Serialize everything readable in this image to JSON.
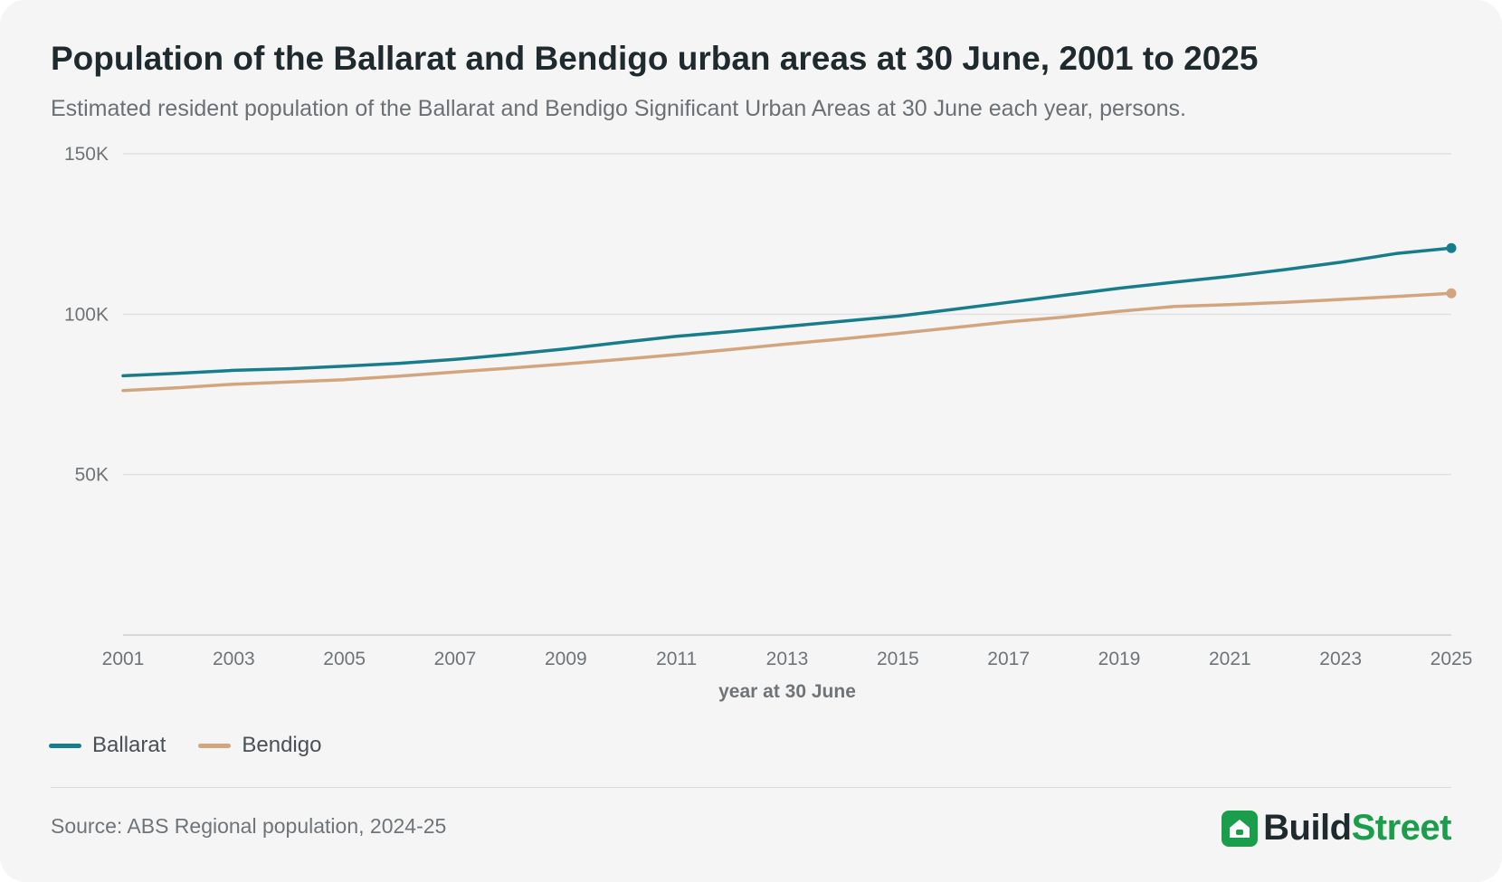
{
  "header": {
    "title": "Population of the Ballarat and Bendigo urban areas at 30 June, 2001 to 2025",
    "subtitle": "Estimated resident population of the Ballarat and Bendigo Significant Urban Areas at 30 June each year, persons."
  },
  "chart_data": {
    "type": "line",
    "title": "Population of the Ballarat and Bendigo urban areas at 30 June, 2001 to 2025",
    "subtitle": "Estimated resident population of the Ballarat and Bendigo Significant Urban Areas at 30 June each year, persons.",
    "xlabel": "year at 30 June",
    "ylabel": "",
    "x": [
      2001,
      2002,
      2003,
      2004,
      2005,
      2006,
      2007,
      2008,
      2009,
      2010,
      2011,
      2012,
      2013,
      2014,
      2015,
      2016,
      2017,
      2018,
      2019,
      2020,
      2021,
      2022,
      2023,
      2024,
      2025
    ],
    "xticks": [
      "2001",
      "2003",
      "2005",
      "2007",
      "2009",
      "2011",
      "2013",
      "2015",
      "2017",
      "2019",
      "2021",
      "2023",
      "2025"
    ],
    "ylim": [
      0,
      150000
    ],
    "yticks": [
      50000,
      100000,
      150000
    ],
    "ytick_labels": [
      "50K",
      "100K",
      "150K"
    ],
    "grid": true,
    "legend_position": "bottom-left",
    "series": [
      {
        "name": "Ballarat",
        "color": "#177d8c",
        "values": [
          80800,
          81600,
          82500,
          83000,
          83800,
          84700,
          85900,
          87500,
          89200,
          91200,
          93100,
          94600,
          96200,
          97800,
          99400,
          101500,
          103700,
          105900,
          108100,
          110000,
          111800,
          113900,
          116200,
          118900,
          120600
        ]
      },
      {
        "name": "Bendigo",
        "color": "#d3a57e",
        "values": [
          76200,
          77100,
          78200,
          78900,
          79600,
          80700,
          82000,
          83200,
          84500,
          85900,
          87400,
          89000,
          90700,
          92300,
          94000,
          95800,
          97600,
          99100,
          100900,
          102400,
          103000,
          103700,
          104600,
          105500,
          106500
        ]
      }
    ]
  },
  "legend": {
    "items": [
      {
        "label": "Ballarat",
        "color": "#177d8c"
      },
      {
        "label": "Bendigo",
        "color": "#d3a57e"
      }
    ]
  },
  "footer": {
    "source": "Source: ABS Regional population, 2024-25",
    "brand_part1": "Build",
    "brand_part2": "Street",
    "brand_icon": "house-icon"
  }
}
